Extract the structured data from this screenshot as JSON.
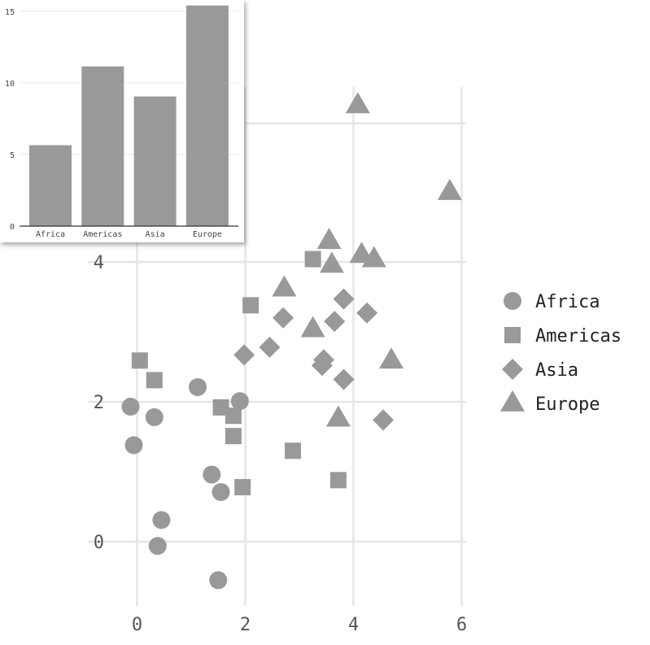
{
  "chart_data": [
    {
      "type": "scatter",
      "xlim": [
        -0.5,
        6.1
      ],
      "ylim": [
        -0.85,
        6.3
      ],
      "x_ticks": [
        "0",
        "2",
        "4",
        "6"
      ],
      "y_ticks": [
        "0",
        "2",
        "4"
      ],
      "grid": true,
      "legend": "right",
      "marker_color": "#999999",
      "series": [
        {
          "name": "Africa",
          "marker": "circle",
          "points": [
            [
              -0.12,
              1.93
            ],
            [
              -0.06,
              1.38
            ],
            [
              0.32,
              1.78
            ],
            [
              0.45,
              0.31
            ],
            [
              0.38,
              -0.06
            ],
            [
              1.12,
              2.21
            ],
            [
              1.38,
              0.96
            ],
            [
              1.55,
              0.71
            ],
            [
              1.5,
              -0.55
            ],
            [
              1.9,
              2.01
            ]
          ]
        },
        {
          "name": "Americas",
          "marker": "square",
          "points": [
            [
              0.05,
              2.59
            ],
            [
              0.32,
              2.31
            ],
            [
              1.55,
              1.92
            ],
            [
              1.78,
              1.8
            ],
            [
              1.78,
              1.51
            ],
            [
              1.95,
              0.78
            ],
            [
              2.1,
              3.38
            ],
            [
              2.88,
              1.3
            ],
            [
              3.25,
              4.04
            ],
            [
              3.72,
              0.88
            ]
          ]
        },
        {
          "name": "Asia",
          "marker": "diamond",
          "points": [
            [
              1.98,
              2.67
            ],
            [
              2.45,
              2.78
            ],
            [
              2.7,
              3.2
            ],
            [
              3.42,
              2.52
            ],
            [
              3.45,
              2.6
            ],
            [
              3.65,
              3.15
            ],
            [
              3.82,
              3.47
            ],
            [
              3.82,
              2.32
            ],
            [
              4.25,
              3.27
            ],
            [
              4.55,
              1.74
            ]
          ]
        },
        {
          "name": "Europe",
          "marker": "triangle",
          "points": [
            [
              2.72,
              3.62
            ],
            [
              3.25,
              3.04
            ],
            [
              3.55,
              4.3
            ],
            [
              3.6,
              3.96
            ],
            [
              3.72,
              1.76
            ],
            [
              4.08,
              6.24
            ],
            [
              4.15,
              4.1
            ],
            [
              4.38,
              4.04
            ],
            [
              4.7,
              2.59
            ],
            [
              5.78,
              5.0
            ]
          ]
        }
      ]
    },
    {
      "type": "bar",
      "categories": [
        "Africa",
        "Americas",
        "Asia",
        "Europe"
      ],
      "values": [
        5.65,
        11.15,
        9.05,
        15.4
      ],
      "ylim": [
        0,
        15.5
      ],
      "y_ticks": [
        0,
        5,
        10,
        15
      ],
      "grid": true,
      "bar_color": "#999999"
    }
  ]
}
